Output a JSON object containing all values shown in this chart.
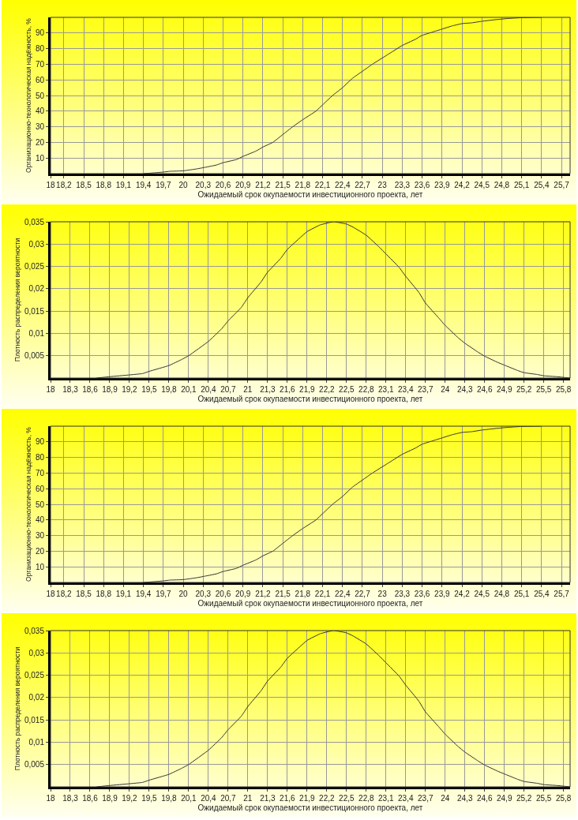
{
  "chart_data": [
    {
      "type": "line",
      "xlabel": "Ожидаемый срок окупаемости инвестиционного проекта, лет",
      "ylabel": "Организационно-технологическая надёжность, %",
      "grid": true,
      "marker": "none",
      "xlim": [
        18,
        25.83
      ],
      "ylim": [
        0,
        100
      ],
      "xticks": [
        18,
        {
          "value": 18.2,
          "label": "18,2"
        },
        {
          "value": 18.5,
          "label": "18,5"
        },
        {
          "value": 18.8,
          "label": "18,8"
        },
        {
          "value": 19.1,
          "label": "19,1"
        },
        {
          "value": 19.4,
          "label": "19,4"
        },
        {
          "value": 19.7,
          "label": "19,7"
        },
        20,
        {
          "value": 20.3,
          "label": "20,3"
        },
        {
          "value": 20.6,
          "label": "20,6"
        },
        {
          "value": 20.9,
          "label": "20,9"
        },
        {
          "value": 21.2,
          "label": "21,2"
        },
        {
          "value": 21.5,
          "label": "21,5"
        },
        {
          "value": 21.8,
          "label": "21,8"
        },
        {
          "value": 22.1,
          "label": "22,1"
        },
        {
          "value": 22.4,
          "label": "22,4"
        },
        {
          "value": 22.7,
          "label": "22,7"
        },
        23,
        {
          "value": 23.3,
          "label": "23,3"
        },
        {
          "value": 23.6,
          "label": "23,6"
        },
        {
          "value": 23.9,
          "label": "23,9"
        },
        {
          "value": 24.2,
          "label": "24,2"
        },
        {
          "value": 24.5,
          "label": "24,5"
        },
        {
          "value": 24.8,
          "label": "24,8"
        },
        {
          "value": 25.1,
          "label": "25,1"
        },
        {
          "value": 25.4,
          "label": "25,4"
        },
        {
          "value": 25.7,
          "label": "25,7"
        }
      ],
      "yticks": [
        10,
        20,
        30,
        40,
        50,
        60,
        70,
        80,
        90
      ],
      "x": [
        19.4,
        19.5,
        19.7,
        19.8,
        20,
        20.2,
        20.3,
        20.5,
        20.6,
        20.8,
        20.9,
        21.1,
        21.2,
        21.35,
        21.5,
        21.65,
        21.8,
        22,
        22.1,
        22.25,
        22.4,
        22.55,
        22.7,
        22.85,
        23,
        23.15,
        23.3,
        23.5,
        23.6,
        23.75,
        23.9,
        24.05,
        24.2,
        24.35,
        24.5,
        24.7,
        24.9,
        25.1,
        25.4
      ],
      "series": [
        {
          "color": "#333333",
          "values": [
            0,
            0.3,
            1,
            1.5,
            1.8,
            3,
            3.8,
            5.5,
            7,
            9,
            11,
            14.5,
            17,
            20,
            25,
            30,
            34.5,
            40,
            44,
            50,
            55,
            61,
            65.5,
            70,
            74,
            78,
            82,
            86,
            88.5,
            90.5,
            92.5,
            94.5,
            96,
            96.5,
            97.5,
            98.5,
            99.3,
            99.8,
            100
          ]
        }
      ]
    },
    {
      "type": "line",
      "xlabel": "Ожидаемый срок окупаемости инвестиционного проекта, лет",
      "ylabel": "Плотность распределения вероятности",
      "grid": true,
      "marker": "none",
      "xlim": [
        18,
        25.9
      ],
      "ylim": [
        0,
        0.035
      ],
      "xticks": [
        18,
        {
          "value": 18.3,
          "label": "18,3"
        },
        {
          "value": 18.6,
          "label": "18,6"
        },
        {
          "value": 18.9,
          "label": "18,9"
        },
        {
          "value": 19.2,
          "label": "19,2"
        },
        {
          "value": 19.5,
          "label": "19,5"
        },
        {
          "value": 19.8,
          "label": "19,8"
        },
        {
          "value": 20.1,
          "label": "20,1"
        },
        {
          "value": 20.4,
          "label": "20,4"
        },
        {
          "value": 20.7,
          "label": "20,7"
        },
        21,
        {
          "value": 21.3,
          "label": "21,3"
        },
        {
          "value": 21.6,
          "label": "21,6"
        },
        {
          "value": 21.9,
          "label": "21,9"
        },
        {
          "value": 22.2,
          "label": "22,2"
        },
        {
          "value": 22.5,
          "label": "22,5"
        },
        {
          "value": 22.8,
          "label": "22,8"
        },
        {
          "value": 23.1,
          "label": "23,1"
        },
        {
          "value": 23.4,
          "label": "23,4"
        },
        {
          "value": 23.7,
          "label": "23,7"
        },
        24,
        {
          "value": 24.3,
          "label": "24,3"
        },
        {
          "value": 24.6,
          "label": "24,6"
        },
        {
          "value": 24.9,
          "label": "24,9"
        },
        {
          "value": 25.2,
          "label": "25,2"
        },
        {
          "value": 25.5,
          "label": "25,5"
        },
        {
          "value": 25.8,
          "label": "25,8"
        }
      ],
      "yticks": [
        {
          "value": 0.005,
          "label": "0,005"
        },
        {
          "value": 0.01,
          "label": "0,01"
        },
        {
          "value": 0.015,
          "label": "0,015"
        },
        {
          "value": 0.02,
          "label": "0,02"
        },
        {
          "value": 0.025,
          "label": "0,025"
        },
        {
          "value": 0.03,
          "label": "0,03"
        },
        {
          "value": 0.035,
          "label": "0,035"
        }
      ],
      "x": [
        18.7,
        18.9,
        19.2,
        19.4,
        19.5,
        19.8,
        20,
        20.1,
        20.4,
        20.6,
        20.7,
        20.9,
        21,
        21.2,
        21.3,
        21.5,
        21.6,
        21.8,
        21.9,
        22.1,
        22.3,
        22.5,
        22.6,
        22.8,
        23,
        23.1,
        23.3,
        23.4,
        23.6,
        23.7,
        23.9,
        24,
        24.2,
        24.3,
        24.5,
        24.6,
        24.8,
        24.9,
        25.1,
        25.2,
        25.4,
        25.5,
        25.7,
        25.9
      ],
      "series": [
        {
          "color": "#333333",
          "values": [
            0,
            0.0003,
            0.0007,
            0.001,
            0.0015,
            0.0028,
            0.0042,
            0.005,
            0.0082,
            0.011,
            0.0128,
            0.0158,
            0.018,
            0.0215,
            0.0237,
            0.0268,
            0.0288,
            0.0315,
            0.0328,
            0.0343,
            0.035,
            0.0345,
            0.0338,
            0.032,
            0.0293,
            0.0278,
            0.0248,
            0.0228,
            0.0192,
            0.0168,
            0.0135,
            0.0118,
            0.009,
            0.0078,
            0.0058,
            0.0049,
            0.0035,
            0.0029,
            0.0017,
            0.0012,
            0.0008,
            0.0005,
            0.0003,
            0
          ]
        }
      ]
    },
    {
      "type": "line",
      "xlabel": "Ожидаемый срок окупаемости инвестиционного проекта, лет",
      "ylabel": "Организационно-технологическая надёжность, %",
      "grid": true,
      "marker": "none",
      "xlim": [
        18,
        25.83
      ],
      "ylim": [
        0,
        100
      ],
      "xticks": [
        18,
        {
          "value": 18.2,
          "label": "18,2"
        },
        {
          "value": 18.5,
          "label": "18,5"
        },
        {
          "value": 18.8,
          "label": "18,8"
        },
        {
          "value": 19.1,
          "label": "19,1"
        },
        {
          "value": 19.4,
          "label": "19,4"
        },
        {
          "value": 19.7,
          "label": "19,7"
        },
        20,
        {
          "value": 20.3,
          "label": "20,3"
        },
        {
          "value": 20.6,
          "label": "20,6"
        },
        {
          "value": 20.9,
          "label": "20,9"
        },
        {
          "value": 21.2,
          "label": "21,2"
        },
        {
          "value": 21.5,
          "label": "21,5"
        },
        {
          "value": 21.8,
          "label": "21,8"
        },
        {
          "value": 22.1,
          "label": "22,1"
        },
        {
          "value": 22.4,
          "label": "22,4"
        },
        {
          "value": 22.7,
          "label": "22,7"
        },
        23,
        {
          "value": 23.3,
          "label": "23,3"
        },
        {
          "value": 23.6,
          "label": "23,6"
        },
        {
          "value": 23.9,
          "label": "23,9"
        },
        {
          "value": 24.2,
          "label": "24,2"
        },
        {
          "value": 24.5,
          "label": "24,5"
        },
        {
          "value": 24.8,
          "label": "24,8"
        },
        {
          "value": 25.1,
          "label": "25,1"
        },
        {
          "value": 25.4,
          "label": "25,4"
        },
        {
          "value": 25.7,
          "label": "25,7"
        }
      ],
      "yticks": [
        10,
        20,
        30,
        40,
        50,
        60,
        70,
        80,
        90
      ],
      "x": [
        19.4,
        19.5,
        19.7,
        19.8,
        20,
        20.2,
        20.3,
        20.5,
        20.6,
        20.8,
        20.9,
        21.1,
        21.2,
        21.35,
        21.5,
        21.65,
        21.8,
        22,
        22.1,
        22.25,
        22.4,
        22.55,
        22.7,
        22.85,
        23,
        23.15,
        23.3,
        23.5,
        23.6,
        23.75,
        23.9,
        24.05,
        24.2,
        24.35,
        24.5,
        24.7,
        24.9,
        25.1,
        25.4
      ],
      "series": [
        {
          "color": "#333333",
          "values": [
            0,
            0.3,
            1,
            1.5,
            1.8,
            3,
            3.8,
            5.5,
            7,
            9,
            11,
            14.5,
            17,
            20,
            25,
            30,
            34.5,
            40,
            44,
            50,
            55,
            61,
            65.5,
            70,
            74,
            78,
            82,
            86,
            88.5,
            90.5,
            92.5,
            94.5,
            96,
            96.5,
            97.5,
            98.5,
            99.3,
            99.8,
            100
          ]
        }
      ]
    },
    {
      "type": "line",
      "xlabel": "Ожидаемый срок окупаемости инвестиционного проекта, лет",
      "ylabel": "Плотность распределения вероятности",
      "grid": true,
      "marker": "none",
      "xlim": [
        18,
        25.9
      ],
      "ylim": [
        0,
        0.035
      ],
      "xticks": [
        18,
        {
          "value": 18.3,
          "label": "18,3"
        },
        {
          "value": 18.6,
          "label": "18,6"
        },
        {
          "value": 18.9,
          "label": "18,9"
        },
        {
          "value": 19.2,
          "label": "19,2"
        },
        {
          "value": 19.5,
          "label": "19,5"
        },
        {
          "value": 19.8,
          "label": "19,8"
        },
        {
          "value": 20.1,
          "label": "20,1"
        },
        {
          "value": 20.4,
          "label": "20,4"
        },
        {
          "value": 20.7,
          "label": "20,7"
        },
        21,
        {
          "value": 21.3,
          "label": "21,3"
        },
        {
          "value": 21.6,
          "label": "21,6"
        },
        {
          "value": 21.9,
          "label": "21,9"
        },
        {
          "value": 22.2,
          "label": "22,2"
        },
        {
          "value": 22.5,
          "label": "22,5"
        },
        {
          "value": 22.8,
          "label": "22,8"
        },
        {
          "value": 23.1,
          "label": "23,1"
        },
        {
          "value": 23.4,
          "label": "23,4"
        },
        {
          "value": 23.7,
          "label": "23,7"
        },
        24,
        {
          "value": 24.3,
          "label": "24,3"
        },
        {
          "value": 24.6,
          "label": "24,6"
        },
        {
          "value": 24.9,
          "label": "24,9"
        },
        {
          "value": 25.2,
          "label": "25,2"
        },
        {
          "value": 25.5,
          "label": "25,5"
        },
        {
          "value": 25.8,
          "label": "25,8"
        }
      ],
      "yticks": [
        {
          "value": 0.005,
          "label": "0,005"
        },
        {
          "value": 0.01,
          "label": "0,01"
        },
        {
          "value": 0.015,
          "label": "0,015"
        },
        {
          "value": 0.02,
          "label": "0,02"
        },
        {
          "value": 0.025,
          "label": "0,025"
        },
        {
          "value": 0.03,
          "label": "0,03"
        },
        {
          "value": 0.035,
          "label": "0,035"
        }
      ],
      "x": [
        18.7,
        18.9,
        19.2,
        19.4,
        19.5,
        19.8,
        20,
        20.1,
        20.4,
        20.6,
        20.7,
        20.9,
        21,
        21.2,
        21.3,
        21.5,
        21.6,
        21.8,
        21.9,
        22.1,
        22.3,
        22.5,
        22.6,
        22.8,
        23,
        23.1,
        23.3,
        23.4,
        23.6,
        23.7,
        23.9,
        24,
        24.2,
        24.3,
        24.5,
        24.6,
        24.8,
        24.9,
        25.1,
        25.2,
        25.4,
        25.5,
        25.7,
        25.9
      ],
      "series": [
        {
          "color": "#333333",
          "values": [
            0,
            0.0003,
            0.0007,
            0.001,
            0.0015,
            0.0028,
            0.0042,
            0.005,
            0.0082,
            0.011,
            0.0128,
            0.0158,
            0.018,
            0.0215,
            0.0237,
            0.0268,
            0.0288,
            0.0315,
            0.0328,
            0.0343,
            0.035,
            0.0345,
            0.0338,
            0.032,
            0.0293,
            0.0278,
            0.0248,
            0.0228,
            0.0192,
            0.0168,
            0.0135,
            0.0118,
            0.009,
            0.0078,
            0.0058,
            0.0049,
            0.0035,
            0.0029,
            0.0017,
            0.0012,
            0.0008,
            0.0005,
            0.0003,
            0
          ]
        }
      ]
    }
  ]
}
